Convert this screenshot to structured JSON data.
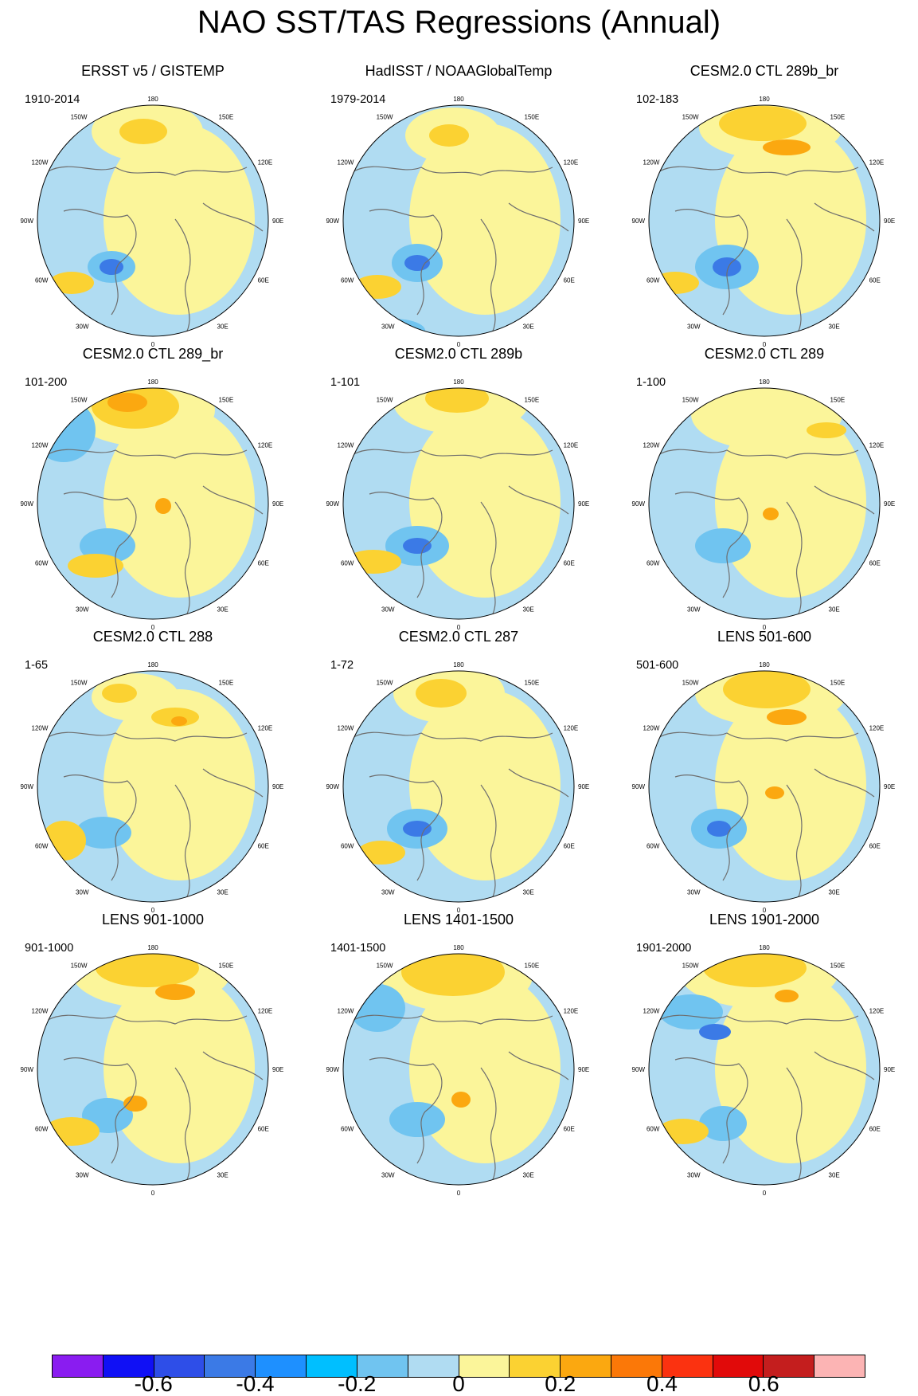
{
  "title": "NAO SST/TAS Regressions (Annual)",
  "panels": [
    {
      "title": "ERSST v5 / GISTEMP",
      "period": "1910-2014"
    },
    {
      "title": "HadISST / NOAAGlobalTemp",
      "period": "1979-2014"
    },
    {
      "title": "CESM2.0 CTL 289b_br",
      "period": "102-183"
    },
    {
      "title": "CESM2.0 CTL 289_br",
      "period": "101-200"
    },
    {
      "title": "CESM2.0 CTL 289b",
      "period": "1-101"
    },
    {
      "title": "CESM2.0 CTL 289",
      "period": "1-100"
    },
    {
      "title": "CESM2.0 CTL 288",
      "period": "1-65"
    },
    {
      "title": "CESM2.0 CTL 287",
      "period": "1-72"
    },
    {
      "title": "LENS 501-600",
      "period": "501-600"
    },
    {
      "title": "LENS 901-1000",
      "period": "901-1000"
    },
    {
      "title": "LENS 1401-1500",
      "period": "1401-1500"
    },
    {
      "title": "LENS 1901-2000",
      "period": "1901-2000"
    }
  ],
  "longitude_labels": {
    "top": "180",
    "bottom": "0",
    "w150": "150W",
    "e150": "150E",
    "w120": "120W",
    "e120": "120E",
    "w90": "90W",
    "e90": "90E",
    "w60": "60W",
    "e60": "60E",
    "w30": "30W",
    "e30": "30E"
  },
  "colorbar": {
    "colors": [
      "#8a1cf0",
      "#1010f5",
      "#2e4ee8",
      "#3b7ae6",
      "#1e90ff",
      "#00bfff",
      "#70c4f0",
      "#b0dcf2",
      "#fbf59a",
      "#fbd232",
      "#fba810",
      "#fb7808",
      "#fb3210",
      "#e10a0a",
      "#c41e1e",
      "#fcb4b4"
    ],
    "tick_labels": [
      "-0.6",
      "-0.4",
      "-0.2",
      "0",
      "0.2",
      "0.4",
      "0.6"
    ]
  },
  "colors": {
    "ocean_base": "#b0dcf2",
    "neg_light": "#70c4f0",
    "neg_mid": "#3b7ae6",
    "pos_light": "#fbf59a",
    "pos_mid": "#fbd232",
    "pos_strong": "#fba810",
    "pos_max": "#fb5a10",
    "coast": "#6e6e6e"
  }
}
